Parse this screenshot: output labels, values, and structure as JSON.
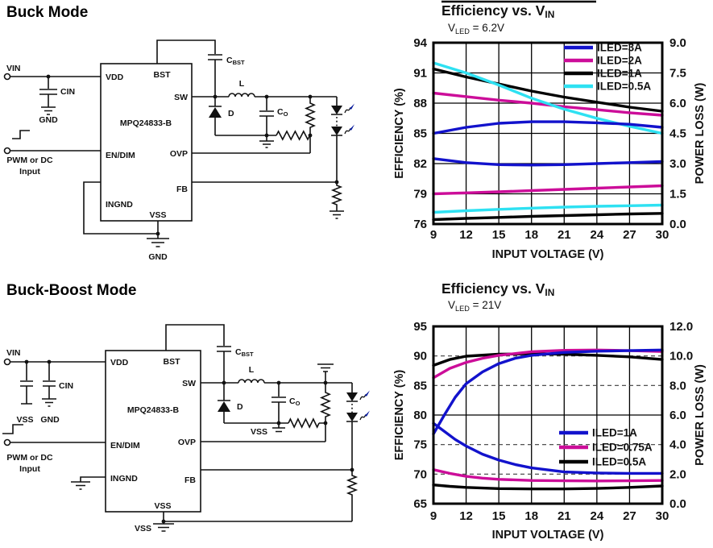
{
  "circuit1": {
    "heading": "Buck Mode",
    "ic_name": "MPQ24833-B",
    "pins": {
      "vdd": "VDD",
      "bst": "BST",
      "sw": "SW",
      "endim": "EN/DIM",
      "ovp": "OVP",
      "fb": "FB",
      "ingnd": "INGND",
      "vss": "VSS"
    },
    "labels": {
      "vin": "VIN",
      "cin": "CIN",
      "gnd_in": "GND",
      "pwm1": "PWM or DC",
      "pwm2": "Input",
      "c": "C",
      "cbst_sub": "BST",
      "l": "L",
      "d": "D",
      "co_sub": "O",
      "gnd_out": "GND"
    }
  },
  "circuit2": {
    "heading": "Buck-Boost Mode",
    "ic_name": "MPQ24833-B",
    "pins": {
      "vdd": "VDD",
      "bst": "BST",
      "sw": "SW",
      "endim": "EN/DIM",
      "ovp": "OVP",
      "fb": "FB",
      "ingnd": "INGND",
      "vss": "VSS"
    },
    "labels": {
      "vin": "VIN",
      "cin": "CIN",
      "vss_in": "VSS",
      "gnd_in": "GND",
      "pwm1": "PWM or DC",
      "pwm2": "Input",
      "c": "C",
      "cbst_sub": "BST",
      "l": "L",
      "d": "D",
      "co_sub": "O",
      "vss_mid": "VSS",
      "vss_bot": "VSS"
    }
  },
  "colors": {
    "blue": "#1212cc",
    "magenta": "#cc0d99",
    "cyan": "#2ee1f2",
    "black": "#000000",
    "led_arrow": "#00149b"
  },
  "charts": [
    {
      "type": "line",
      "title_parts": [
        {
          "t": "Efficiency vs. V"
        },
        {
          "t": "IN",
          "sub": true
        }
      ],
      "subtitle_parts": [
        {
          "t": "V"
        },
        {
          "t": "LED",
          "sub": true
        },
        {
          "t": " = 6.2V"
        }
      ],
      "xlabel": "INPUT VOLTAGE  (V)",
      "ylabel_left": "EFFICIENCY  (%)",
      "ylabel_right": "POWER LOSS  (W)",
      "x_range": [
        9,
        30
      ],
      "y_left_range": [
        76,
        94
      ],
      "y_right_range": [
        0,
        9
      ],
      "x_ticks": [
        9,
        12,
        15,
        18,
        21,
        24,
        27,
        30
      ],
      "y_left_ticks": [
        76,
        79,
        82,
        85,
        88,
        91,
        94
      ],
      "y_right_values": [
        0,
        1.5,
        3,
        4.5,
        6,
        7.5,
        9
      ],
      "y_right_labels": [
        "0.0",
        "1.5",
        "3.0",
        "4.5",
        "6.0",
        "7.5",
        "9.0"
      ],
      "grid_left_solid": [
        79,
        82,
        85,
        88,
        91
      ],
      "grid_left_dashed": [],
      "has_top_rule": true,
      "legend": [
        {
          "label": "ILED=3A",
          "color": "#1212cc"
        },
        {
          "label": "ILED=2A",
          "color": "#cc0d99"
        },
        {
          "label": "ILED=1A",
          "color": "#000000"
        },
        {
          "label": "ILED=0.5A",
          "color": "#2ee1f2"
        }
      ],
      "series": [
        {
          "id": "eff-iled-1a",
          "axis": "left",
          "color": "#000000",
          "x": [
            9,
            12,
            15,
            18,
            21,
            24,
            27,
            30
          ],
          "y": [
            91.4,
            90.6,
            89.9,
            89.2,
            88.6,
            88.1,
            87.6,
            87.2
          ]
        },
        {
          "id": "eff-iled-2a",
          "axis": "left",
          "color": "#cc0d99",
          "x": [
            9,
            12,
            15,
            18,
            21,
            24,
            27,
            30
          ],
          "y": [
            89.0,
            88.65,
            88.3,
            88.0,
            87.65,
            87.35,
            87.05,
            86.8
          ]
        },
        {
          "id": "eff-iled-0p5a",
          "axis": "left",
          "color": "#2ee1f2",
          "x": [
            9,
            12,
            15,
            18,
            21,
            24,
            27,
            30
          ],
          "y": [
            92.0,
            91.0,
            89.8,
            88.5,
            87.4,
            86.5,
            85.7,
            85.0
          ]
        },
        {
          "id": "eff-iled-3a",
          "axis": "left",
          "color": "#1212cc",
          "x": [
            9,
            12,
            15,
            18,
            21,
            24,
            27,
            30
          ],
          "y": [
            85.0,
            85.6,
            86.0,
            86.15,
            86.15,
            86.05,
            85.9,
            85.6
          ]
        },
        {
          "id": "pl-iled-1a",
          "axis": "right",
          "color": "#000000",
          "x": [
            9,
            12,
            15,
            18,
            21,
            24,
            27,
            30
          ],
          "y": [
            0.22,
            0.28,
            0.33,
            0.38,
            0.42,
            0.46,
            0.5,
            0.53
          ]
        },
        {
          "id": "pl-iled-2a",
          "axis": "right",
          "color": "#cc0d99",
          "x": [
            9,
            12,
            15,
            18,
            21,
            24,
            27,
            30
          ],
          "y": [
            1.5,
            1.55,
            1.6,
            1.66,
            1.72,
            1.78,
            1.84,
            1.9
          ]
        },
        {
          "id": "pl-iled-0p5a",
          "axis": "right",
          "color": "#2ee1f2",
          "x": [
            9,
            12,
            15,
            18,
            21,
            24,
            27,
            30
          ],
          "y": [
            0.58,
            0.66,
            0.73,
            0.79,
            0.84,
            0.88,
            0.91,
            0.94
          ]
        },
        {
          "id": "pl-iled-3a",
          "axis": "right",
          "color": "#1212cc",
          "x": [
            9,
            12,
            15,
            18,
            21,
            24,
            27,
            30
          ],
          "y": [
            3.25,
            3.05,
            2.95,
            2.93,
            2.95,
            3.0,
            3.05,
            3.1
          ]
        }
      ]
    },
    {
      "type": "line",
      "title_parts": [
        {
          "t": "Efficiency vs. V"
        },
        {
          "t": "IN",
          "sub": true
        }
      ],
      "subtitle_parts": [
        {
          "t": "V"
        },
        {
          "t": "LED",
          "sub": true
        },
        {
          "t": " = 21V"
        }
      ],
      "xlabel": "INPUT VOLTAGE  (V)",
      "ylabel_left": "EFFICIENCY  (%)",
      "ylabel_right": "POWER LOSS (W)",
      "x_range": [
        9,
        30
      ],
      "y_left_range": [
        65,
        95
      ],
      "y_right_range": [
        0,
        12
      ],
      "x_ticks": [
        9,
        12,
        15,
        18,
        21,
        24,
        27,
        30
      ],
      "y_left_ticks": [
        65,
        70,
        75,
        80,
        85,
        90,
        95
      ],
      "y_right_values": [
        0,
        2,
        4,
        6,
        8,
        10,
        12
      ],
      "y_right_labels": [
        "0.0",
        "2.0",
        "4.0",
        "6.0",
        "8.0",
        "10.0",
        "12.0"
      ],
      "grid_left_solid": [
        80
      ],
      "grid_left_dashed": [
        70,
        75,
        85,
        90
      ],
      "has_top_rule": false,
      "legend": [
        {
          "label": "ILED=1A",
          "color": "#1212cc"
        },
        {
          "label": "ILED=0.75A",
          "color": "#cc0d99"
        },
        {
          "label": "ILED=0.5A",
          "color": "#000000"
        }
      ],
      "series": [
        {
          "id": "eff-iled-0p5a",
          "axis": "left",
          "color": "#000000",
          "x": [
            9,
            10.5,
            12,
            15,
            18,
            21,
            24,
            27,
            30
          ],
          "y": [
            88.4,
            89.4,
            89.95,
            90.3,
            90.35,
            90.3,
            90.1,
            89.85,
            89.4
          ]
        },
        {
          "id": "eff-iled-0p75a",
          "axis": "left",
          "color": "#cc0d99",
          "x": [
            9,
            10.5,
            12,
            13.5,
            15,
            18,
            21,
            24,
            27,
            30
          ],
          "y": [
            86.3,
            87.9,
            88.9,
            89.6,
            90.1,
            90.7,
            90.95,
            91.0,
            90.9,
            90.75
          ]
        },
        {
          "id": "eff-iled-1a",
          "axis": "left",
          "color": "#1212cc",
          "x": [
            9,
            10,
            11,
            12,
            13.5,
            15,
            16.5,
            18,
            21,
            24,
            27,
            30
          ],
          "y": [
            76.8,
            80.0,
            83.0,
            85.3,
            87.3,
            88.7,
            89.6,
            90.1,
            90.6,
            90.8,
            90.9,
            91.0
          ]
        },
        {
          "id": "pl-iled-0p5a",
          "axis": "right",
          "color": "#000000",
          "x": [
            9,
            10.5,
            12,
            15,
            18,
            21,
            24,
            27,
            30
          ],
          "y": [
            1.27,
            1.17,
            1.1,
            1.02,
            1.0,
            1.0,
            1.03,
            1.1,
            1.2
          ]
        },
        {
          "id": "pl-iled-0p75a",
          "axis": "right",
          "color": "#cc0d99",
          "x": [
            9,
            10.5,
            12,
            13.5,
            15,
            18,
            21,
            24,
            27,
            30
          ],
          "y": [
            2.3,
            2.05,
            1.85,
            1.73,
            1.65,
            1.57,
            1.55,
            1.54,
            1.55,
            1.57
          ]
        },
        {
          "id": "pl-iled-1a",
          "axis": "right",
          "color": "#1212cc",
          "x": [
            9,
            10,
            11,
            12,
            13.5,
            15,
            16.5,
            18,
            21,
            24,
            27,
            30
          ],
          "y": [
            5.44,
            4.9,
            4.35,
            3.9,
            3.35,
            2.95,
            2.65,
            2.42,
            2.15,
            2.08,
            2.05,
            2.05
          ]
        }
      ]
    }
  ]
}
